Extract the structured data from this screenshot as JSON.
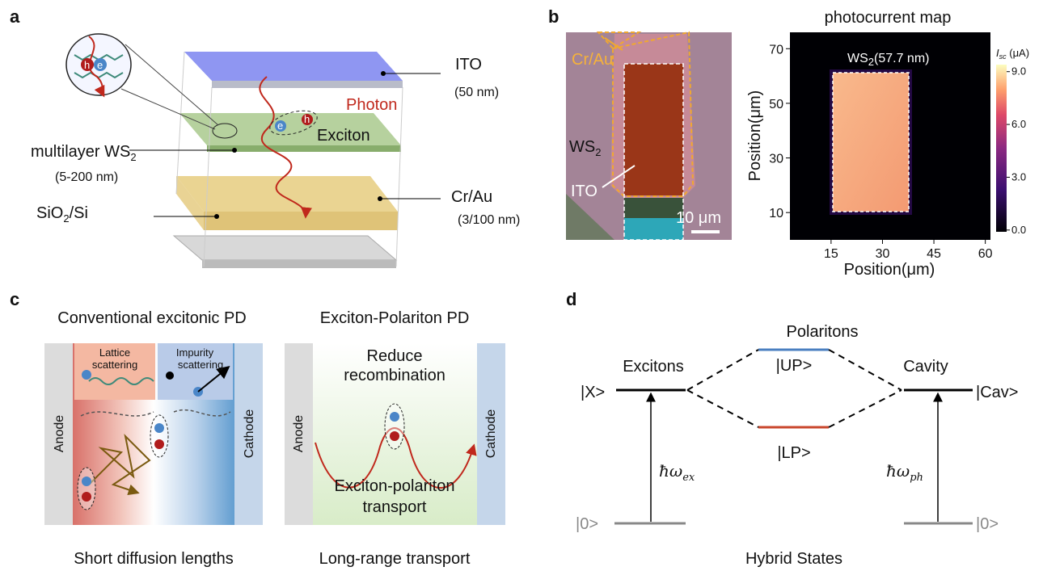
{
  "panel_labels": [
    "a",
    "b",
    "c",
    "d"
  ],
  "panel_a": {
    "ito": "ITO",
    "ito_thickness": "(50 nm)",
    "photon": "Photon",
    "exciton": "Exciton",
    "ws2": [
      "multilayer WS",
      "2"
    ],
    "ws2_thickness": "(5-200 nm)",
    "cr_au": "Cr/Au",
    "cr_au_thickness": "(3/100 nm)",
    "substrate": [
      "SiO",
      "2",
      "/Si"
    ],
    "hole": "h",
    "electron": "e"
  },
  "panel_b": {
    "micrograph": {
      "cr_au": "Cr/Au",
      "ws2": [
        "WS",
        "2"
      ],
      "ito": "ITO",
      "scale_bar": "10 μm"
    },
    "map": {
      "title": "photocurrent map",
      "annotation": [
        "WS",
        "2",
        "(57.7 nm)"
      ],
      "xlabel": "Position(μm)",
      "ylabel": "Position(μm)",
      "xlim": [
        3,
        61.5
      ],
      "xticks": [
        15,
        30,
        45,
        60
      ],
      "ylim": [
        0,
        76
      ],
      "yticks": [
        10,
        30,
        50,
        70
      ],
      "colorbar": {
        "label": [
          "I",
          "sc",
          " (μA)"
        ],
        "lim": [
          -0.1,
          9.4
        ],
        "ticks": [
          {
            "value": 0,
            "label": "0.0"
          },
          {
            "value": 3,
            "label": "3.0"
          },
          {
            "value": 6,
            "label": "6.0"
          },
          {
            "value": 9,
            "label": "9.0"
          }
        ]
      }
    }
  },
  "panel_c": {
    "left_title": "Conventional excitonic PD",
    "right_title": "Exciton-Polariton PD",
    "lattice": [
      "Lattice",
      "scattering"
    ],
    "impurity": [
      "Impurity",
      "scattering"
    ],
    "anode": "Anode",
    "cathode": "Cathode",
    "reduce": [
      "Reduce",
      "recombination"
    ],
    "transport": [
      "Exciton-polariton",
      "transport"
    ],
    "left_caption": "Short diffusion lengths",
    "right_caption": "Long-range transport"
  },
  "panel_d": {
    "polaritons": "Polaritons",
    "up": "|UP>",
    "lp": "|LP>",
    "excitons": "Excitons",
    "x": "|X>",
    "cavity": "Cavity",
    "cav": "|Cav>",
    "hw_ex": [
      "ħω",
      "ex"
    ],
    "hw_ph": [
      "ħω",
      "ph"
    ],
    "ground_left": "|0>",
    "ground_right": "|0>",
    "caption": "Hybrid States"
  }
}
